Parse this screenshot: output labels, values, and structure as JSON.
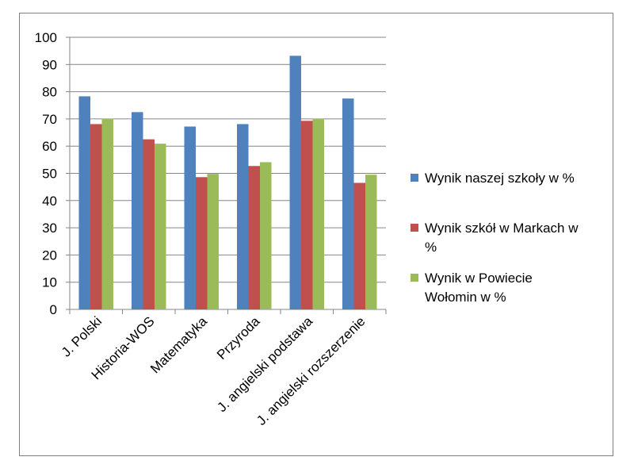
{
  "chart_data": {
    "type": "bar",
    "title": "",
    "xlabel": "",
    "ylabel": "",
    "ylim": [
      0,
      100
    ],
    "yticks": [
      0,
      10,
      20,
      30,
      40,
      50,
      60,
      70,
      80,
      90,
      100
    ],
    "grid": true,
    "legend_position": "right",
    "categories": [
      "J. Polski",
      "Historia-WOS",
      "Matematyka",
      "Przyroda",
      "J. angielski podstawa",
      "J. angielski rozszerzenie"
    ],
    "series": [
      {
        "name": "Wynik naszej szkoły w %",
        "legend_lines": [
          "Wynik naszej szkoły w %"
        ],
        "color": "#4f81bd",
        "values": [
          78.3,
          72.5,
          67.2,
          68.1,
          93.2,
          77.5
        ]
      },
      {
        "name": "Wynik szkół w Markach w %",
        "legend_lines": [
          "Wynik szkół w Markach w",
          "%"
        ],
        "color": "#c0504d",
        "values": [
          68.1,
          62.5,
          48.6,
          52.7,
          69.3,
          46.5
        ]
      },
      {
        "name": "Wynik w Powiecie Wołomin w %",
        "legend_lines": [
          "Wynik w Powiecie",
          "Wołomin w %"
        ],
        "color": "#9bbb59",
        "values": [
          70.1,
          60.9,
          49.8,
          54.1,
          70.1,
          49.5
        ]
      }
    ]
  }
}
